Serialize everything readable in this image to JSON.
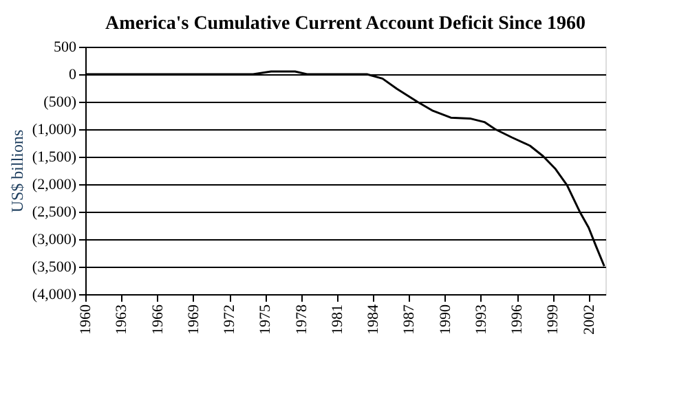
{
  "chart_data": {
    "type": "line",
    "title": "America's Cumulative Current Account Deficit Since 1960",
    "ylabel": "US$ billions",
    "x": [
      1960,
      1963,
      1966,
      1970,
      1974,
      1975.5,
      1976.5,
      1977.5,
      1978.5,
      1981,
      1983.5,
      1984.8,
      1986,
      1987.7,
      1989,
      1990.5,
      1992.1,
      1993.3,
      1994.2,
      1995.6,
      1997.1,
      1998.2,
      1999.2,
      2000.2,
      2001.3,
      2002,
      2002.6,
      2003.3
    ],
    "series": [
      {
        "color": "#000000",
        "values": [
          0,
          0,
          0,
          0,
          0,
          50,
          50,
          50,
          0,
          0,
          0,
          -80,
          -265,
          -500,
          -665,
          -790,
          -805,
          -870,
          -1000,
          -1150,
          -1300,
          -1490,
          -1715,
          -2020,
          -2520,
          -2790,
          -3120,
          -3490
        ]
      }
    ],
    "xlim": [
      1960,
      2003.4
    ],
    "xticks": [
      1960,
      1963,
      1966,
      1969,
      1972,
      1975,
      1978,
      1981,
      1984,
      1987,
      1990,
      1993,
      1996,
      1999,
      2002
    ],
    "ylim": [
      -4000,
      500
    ],
    "yticks": [
      500,
      0,
      {
        "value": -500,
        "label": "(500)"
      },
      {
        "value": -1000,
        "label": "(1,000)"
      },
      {
        "value": -1500,
        "label": "(1,500)"
      },
      {
        "value": -2000,
        "label": "(2,000)"
      },
      {
        "value": -2500,
        "label": "(2,500)"
      },
      {
        "value": -3000,
        "label": "(3,000)"
      },
      {
        "value": -3500,
        "label": "(3,500)"
      },
      {
        "value": -4000,
        "label": "(4,000)"
      }
    ],
    "grid": "y"
  }
}
